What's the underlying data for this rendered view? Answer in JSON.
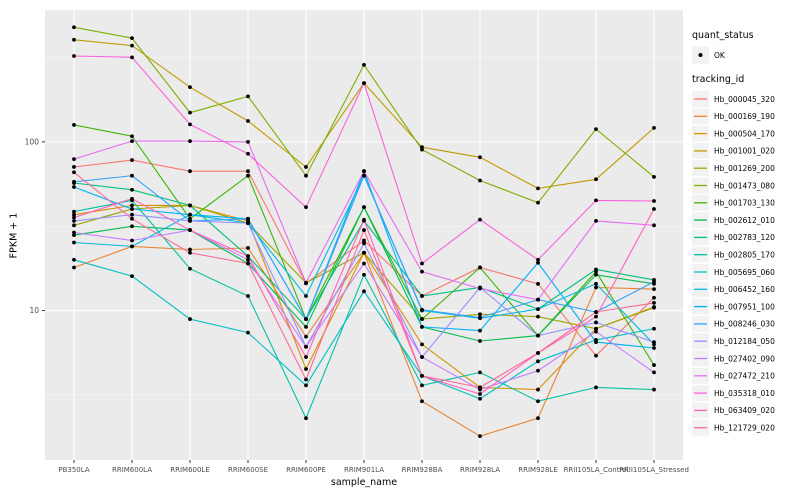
{
  "chart_data": {
    "type": "line",
    "title": "",
    "xlabel": "sample_name",
    "ylabel": "FPKM + 1",
    "y_scale": "log10",
    "y_ticks": [
      10,
      100
    ],
    "y_tick_labels": [
      "10",
      "100"
    ],
    "y_minor": [
      3.162,
      31.62,
      316.2
    ],
    "ylim": [
      1.3,
      605
    ],
    "grid": true,
    "legend_position": "right",
    "x_categories": [
      "PB350LA",
      "RRIM600LA",
      "RRIM600LE",
      "RRIM600SE",
      "RRIM600PE",
      "RRIM901LA",
      "RRIM928BA",
      "RRIM928LA",
      "RRIM928LE",
      "RRII105LA_Control",
      "RRII105LA_Stressed"
    ],
    "series": [
      {
        "name": "Hb_000045_320",
        "color": "#F8766D",
        "values": [
          71,
          78,
          67,
          67,
          14.5,
          26,
          12.2,
          18,
          14.4,
          5.4,
          11.9
        ]
      },
      {
        "name": "Hb_000169_190",
        "color": "#EA8331",
        "values": [
          18,
          24,
          23,
          23.5,
          7,
          22,
          2.9,
          1.8,
          2.3,
          13.7,
          13.4
        ]
      },
      {
        "name": "Hb_000504_170",
        "color": "#D89000",
        "values": [
          37,
          42,
          42,
          34,
          4.5,
          22,
          6.3,
          3.5,
          3.4,
          7.8,
          10.5
        ]
      },
      {
        "name": "Hb_001001_020",
        "color": "#C09B00",
        "values": [
          403,
          372,
          211,
          133,
          71,
          223,
          93,
          81,
          53,
          60,
          121
        ]
      },
      {
        "name": "Hb_001269_200",
        "color": "#A3A500",
        "values": [
          32,
          40,
          42,
          33,
          14.6,
          22,
          8.9,
          9.5,
          9.2,
          7.8,
          10.4
        ]
      },
      {
        "name": "Hb_001473_080",
        "color": "#7CAE00",
        "values": [
          478,
          412,
          149,
          186,
          63,
          286,
          90,
          59,
          43.6,
          119,
          62
        ]
      },
      {
        "name": "Hb_001703_130",
        "color": "#39B600",
        "values": [
          126,
          108,
          35,
          63,
          8.9,
          41,
          8.9,
          18,
          7.1,
          17,
          4.75
        ]
      },
      {
        "name": "Hb_002612_010",
        "color": "#00BB4E",
        "values": [
          28,
          31.6,
          30,
          19,
          8,
          41,
          8,
          6.6,
          7.1,
          16.3,
          14.4
        ]
      },
      {
        "name": "Hb_002783_120",
        "color": "#00BF7D",
        "values": [
          57,
          52,
          42,
          21,
          8.9,
          34,
          12.2,
          13.7,
          10.2,
          17.5,
          15.2
        ]
      },
      {
        "name": "Hb_002805_170",
        "color": "#00C1A3",
        "values": [
          38.6,
          45,
          17.7,
          12.2,
          2.3,
          16.3,
          3.6,
          4.3,
          2.9,
          3.5,
          3.4
        ]
      },
      {
        "name": "Hb_005695_060",
        "color": "#00BFC4",
        "values": [
          20,
          16,
          8.9,
          7.4,
          3.6,
          13,
          4.1,
          3,
          5,
          6.7,
          7.8
        ]
      },
      {
        "name": "Hb_006452_160",
        "color": "#00BAE0",
        "values": [
          25.3,
          24,
          37,
          33,
          12.2,
          63,
          10,
          9,
          10.2,
          14.4,
          6.3
        ]
      },
      {
        "name": "Hb_007951_100",
        "color": "#00B0F6",
        "values": [
          54,
          40,
          37,
          35,
          8.9,
          67,
          8,
          7.6,
          19.2,
          6.5,
          6
        ]
      },
      {
        "name": "Hb_008246_030",
        "color": "#35A2FF",
        "values": [
          58,
          63,
          34,
          35,
          8.9,
          63,
          10.1,
          9.1,
          11.6,
          9.8,
          14.8
        ]
      },
      {
        "name": "Hb_012184_050",
        "color": "#9590FF",
        "values": [
          34,
          37,
          34,
          33,
          6.1,
          25,
          5.3,
          13.7,
          7.1,
          8.5,
          6.5
        ]
      },
      {
        "name": "Hb_027402_090",
        "color": "#C77CFF",
        "values": [
          29,
          26,
          30,
          20,
          6.1,
          19,
          5.3,
          3.4,
          4.4,
          7.5,
          4.3
        ]
      },
      {
        "name": "Hb_027472_210",
        "color": "#E76BF3",
        "values": [
          79,
          101,
          101,
          100,
          14.6,
          67,
          17,
          13.5,
          11.6,
          34,
          32
        ]
      },
      {
        "name": "Hb_035318_010",
        "color": "#FA62DB",
        "values": [
          323,
          317,
          127,
          85,
          41,
          223,
          19,
          34.6,
          20,
          45,
          44.6
        ]
      },
      {
        "name": "Hb_063409_020",
        "color": "#FF62BC",
        "values": [
          35.6,
          46,
          30,
          21,
          5.3,
          34.5,
          4.1,
          3.2,
          5.6,
          9.2,
          40
        ]
      },
      {
        "name": "Hb_121729_020",
        "color": "#FF6A98",
        "values": [
          66,
          35,
          22,
          19,
          3.9,
          30,
          4.1,
          3.5,
          5.6,
          9.8,
          11.1
        ]
      }
    ],
    "point_marker": {
      "shape": "point",
      "color": "#000000"
    },
    "legend": {
      "quant_status_title": "quant_status",
      "quant_status_items": [
        {
          "label": "OK",
          "marker": "point"
        }
      ],
      "tracking_title": "tracking_id"
    }
  },
  "styles": {
    "panel_bg": "#EBEBEB",
    "grid_major": "#FFFFFF",
    "grid_minor": "#F5F5F5",
    "tick_text": "#4D4D4D",
    "axis_title": "#000000",
    "legend_key_bg": "#F2F2F2",
    "point_color": "#000000"
  }
}
